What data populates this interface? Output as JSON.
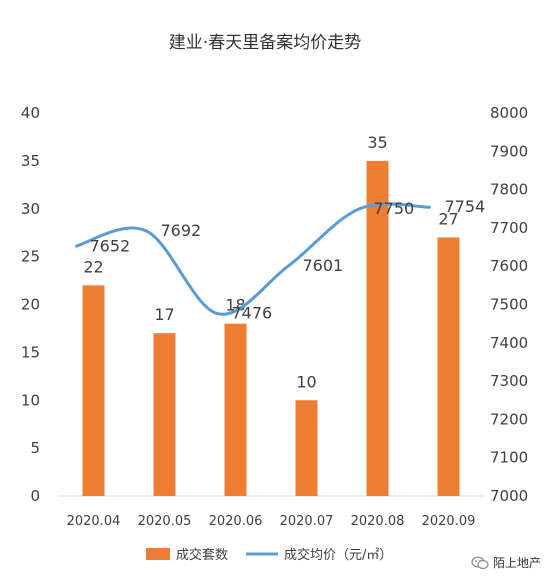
{
  "chart_data": {
    "type": "bar",
    "title": "建业·春天里备案均价走势",
    "categories": [
      "2020.04",
      "2020.05",
      "2020.06",
      "2020.07",
      "2020.08",
      "2020.09"
    ],
    "series": [
      {
        "name": "成交套数",
        "type": "bar",
        "axis": "left",
        "values": [
          22,
          17,
          18,
          10,
          35,
          27
        ],
        "color": "#ED7D31"
      },
      {
        "name": "成交均价（元/㎡）",
        "type": "line",
        "axis": "right",
        "smooth": true,
        "values": [
          7652,
          7692,
          7476,
          7601,
          7750,
          7754
        ],
        "color": "#5B9BD5"
      }
    ],
    "y_left": {
      "min": 0,
      "max": 40,
      "ticks": [
        0,
        5,
        10,
        15,
        20,
        25,
        30,
        35,
        40
      ]
    },
    "y_right": {
      "min": 7000,
      "max": 8000,
      "ticks": [
        7000,
        7100,
        7200,
        7300,
        7400,
        7500,
        7600,
        7700,
        7800,
        7900,
        8000
      ]
    },
    "grid": false,
    "legend": "bottom"
  },
  "watermark": {
    "text": "陌上地产"
  }
}
